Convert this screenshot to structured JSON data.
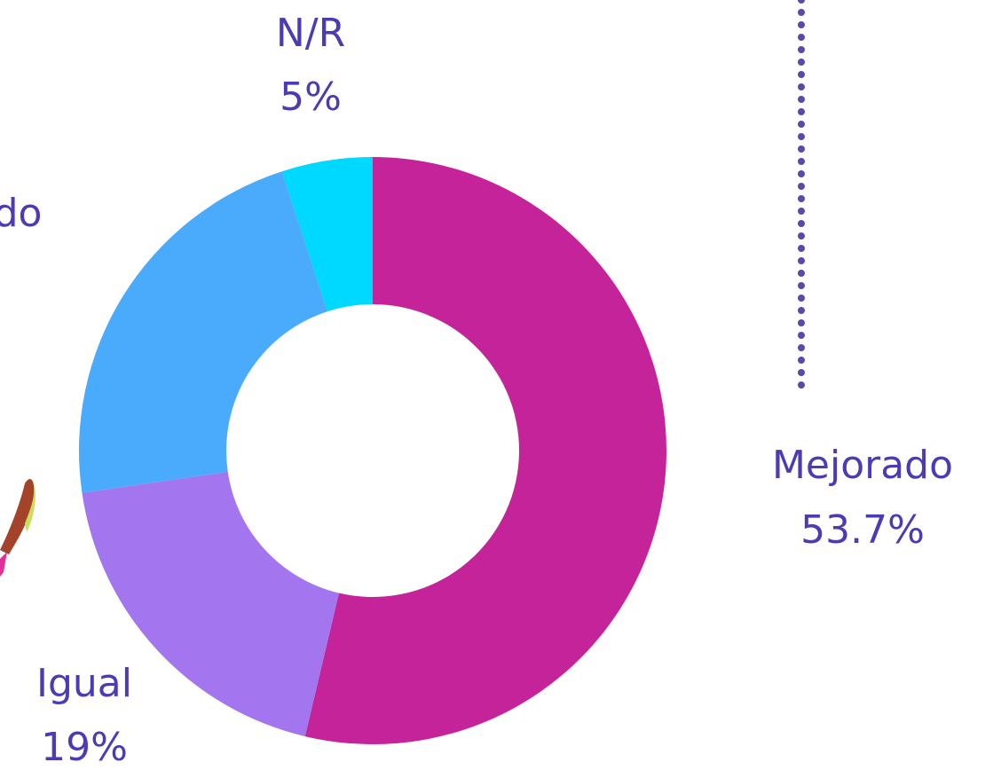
{
  "chart_data": {
    "type": "donut",
    "categories": [
      "Mejorado",
      "Igual",
      "do",
      "N/R"
    ],
    "values": [
      53.7,
      19,
      22.3,
      5
    ],
    "value_labels": [
      "53.7%",
      "19%",
      null,
      "5%"
    ],
    "colors": [
      "#c42399",
      "#a375ee",
      "#4aaafc",
      "#00d9ff"
    ]
  }
}
